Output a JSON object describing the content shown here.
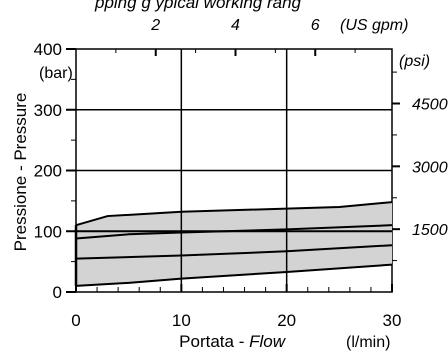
{
  "chart_data": {
    "type": "area",
    "title_fragment": "pping g  ypical working rang",
    "xlabel_prefix": "Portata - ",
    "xlabel_italic": "Flow",
    "x_unit": "(l/min)",
    "ylabel": "Pressione - Pressure",
    "y_unit": "(bar)",
    "secondary_x_unit": "(US gpm)",
    "secondary_y_unit": "(psi)",
    "xlim": [
      0,
      30
    ],
    "ylim": [
      0,
      400
    ],
    "x_ticks": [
      "0",
      "10",
      "20",
      "30"
    ],
    "y_ticks": [
      "0",
      "100",
      "200",
      "300",
      "400"
    ],
    "secondary_x_ticks": [
      "2",
      "4",
      "6"
    ],
    "secondary_y_ticks": [
      "1500",
      "3000",
      "4500"
    ],
    "grid_x": [
      10,
      20
    ],
    "grid_y": [
      100,
      200,
      300
    ],
    "band": {
      "upper": [
        [
          0,
          110
        ],
        [
          3,
          125
        ],
        [
          10,
          132
        ],
        [
          25,
          140
        ],
        [
          30,
          148
        ]
      ],
      "lower": [
        [
          0,
          10
        ],
        [
          5,
          15
        ],
        [
          10,
          22
        ],
        [
          20,
          33
        ],
        [
          30,
          45
        ]
      ],
      "fill": "#d3d3d3"
    },
    "inner_lines": [
      [
        [
          0,
          88
        ],
        [
          5,
          95
        ],
        [
          10,
          98
        ],
        [
          20,
          103
        ],
        [
          30,
          110
        ]
      ],
      [
        [
          0,
          55
        ],
        [
          10,
          60
        ],
        [
          20,
          67
        ],
        [
          30,
          77
        ]
      ],
      [
        [
          0,
          100
        ],
        [
          30,
          100
        ]
      ]
    ]
  }
}
